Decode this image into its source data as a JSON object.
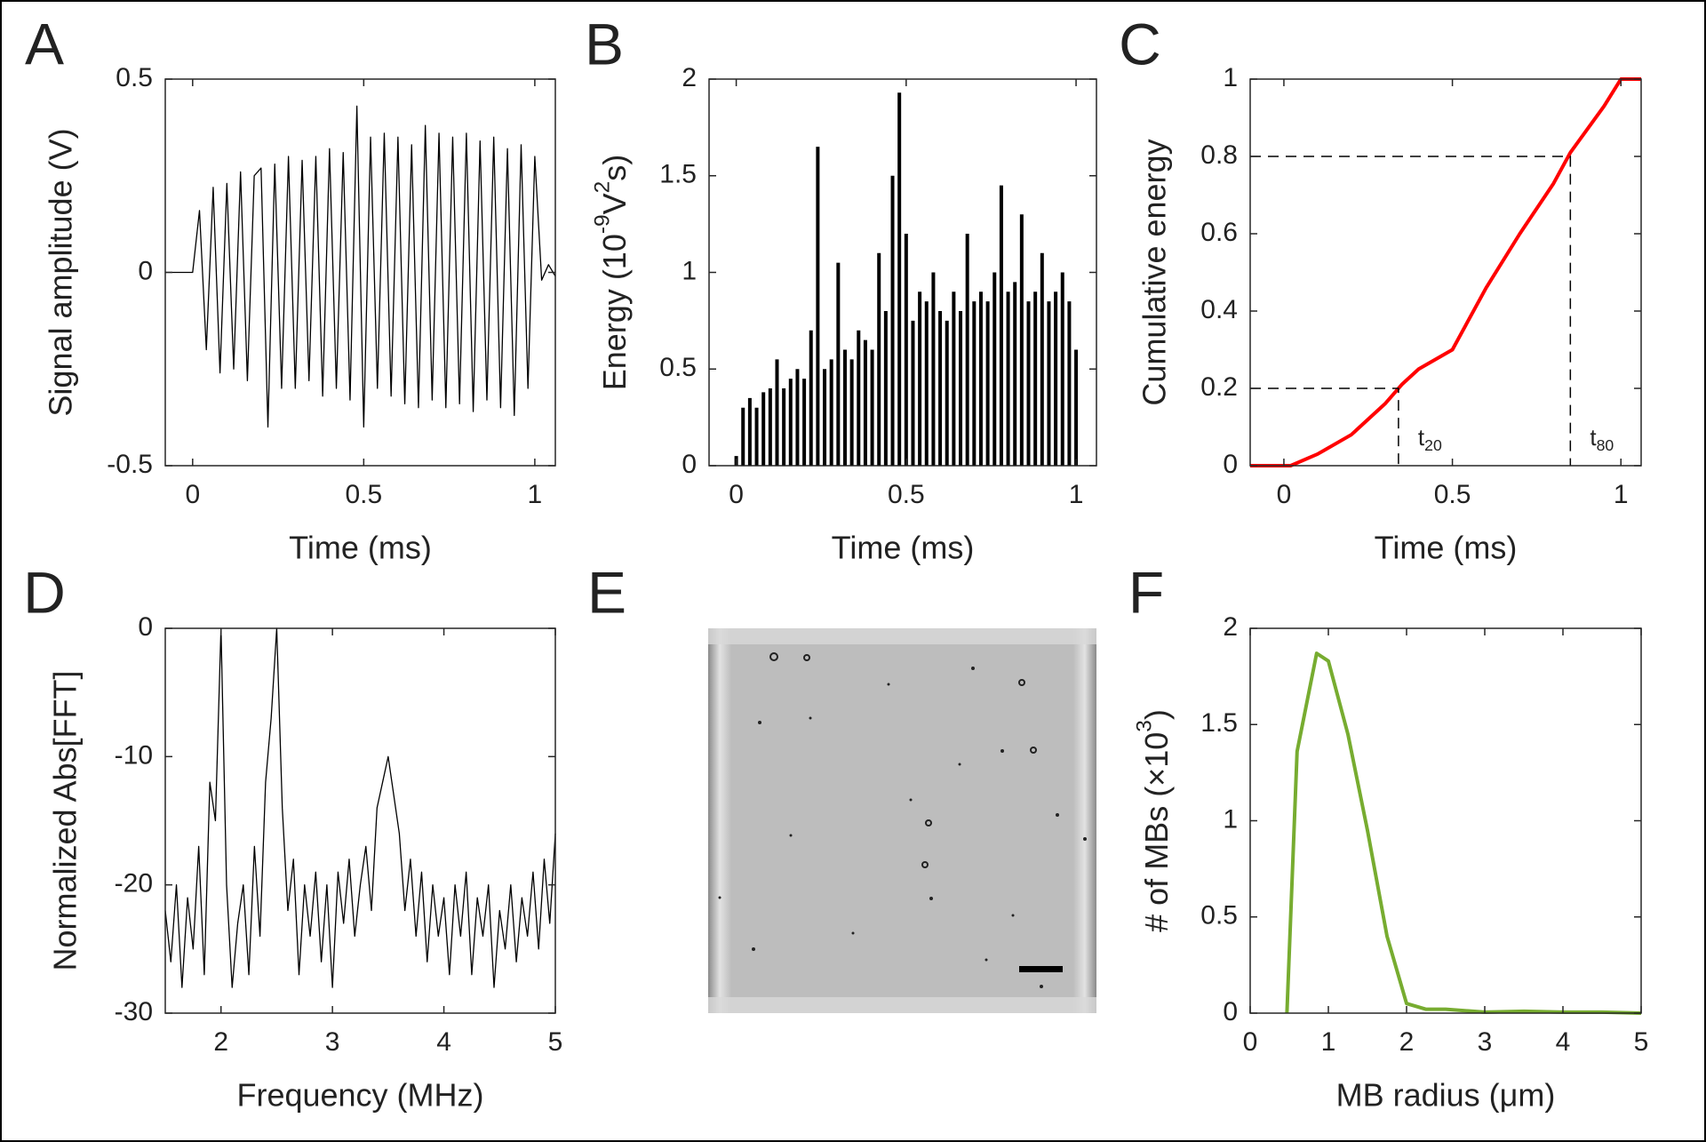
{
  "chart_data": [
    {
      "panel": "A",
      "type": "line",
      "color": "#000000",
      "xlabel": "Time (ms)",
      "ylabel": "Signal amplitude (V)",
      "xlim": [
        -0.08,
        1.06
      ],
      "ylim": [
        -0.5,
        0.5
      ],
      "xticks": [
        0,
        0.5,
        1
      ],
      "yticks": [
        -0.5,
        0,
        0.5
      ],
      "x": [
        -0.08,
        -0.06,
        -0.04,
        -0.02,
        0,
        0.02,
        0.04,
        0.06,
        0.08,
        0.1,
        0.12,
        0.14,
        0.16,
        0.18,
        0.2,
        0.22,
        0.24,
        0.26,
        0.28,
        0.3,
        0.32,
        0.34,
        0.36,
        0.38,
        0.4,
        0.42,
        0.44,
        0.46,
        0.48,
        0.5,
        0.52,
        0.54,
        0.56,
        0.58,
        0.6,
        0.62,
        0.64,
        0.66,
        0.68,
        0.7,
        0.72,
        0.74,
        0.76,
        0.78,
        0.8,
        0.82,
        0.84,
        0.86,
        0.88,
        0.9,
        0.92,
        0.94,
        0.96,
        0.98,
        1,
        1.02,
        1.04,
        1.06
      ],
      "values": [
        0,
        0,
        0,
        0,
        0,
        0.16,
        -0.2,
        0.22,
        -0.26,
        0.23,
        -0.25,
        0.26,
        -0.28,
        0.25,
        0.27,
        -0.4,
        0.28,
        -0.3,
        0.3,
        -0.3,
        0.29,
        -0.28,
        0.3,
        -0.32,
        0.32,
        -0.3,
        0.31,
        -0.33,
        0.43,
        -0.4,
        0.35,
        -0.3,
        0.36,
        -0.32,
        0.35,
        -0.34,
        0.33,
        -0.35,
        0.38,
        -0.33,
        0.36,
        -0.35,
        0.35,
        -0.34,
        0.36,
        -0.36,
        0.34,
        -0.33,
        0.35,
        -0.35,
        0.32,
        -0.37,
        0.33,
        -0.3,
        0.3,
        -0.02,
        0.02,
        -0.01
      ]
    },
    {
      "panel": "B",
      "type": "stem",
      "color": "#000000",
      "xlabel": "Time (ms)",
      "ylabel": [
        {
          "text": "Energy (10"
        },
        {
          "text": "-9",
          "sup": true
        },
        {
          "text": "V"
        },
        {
          "text": "2",
          "sup": true
        },
        {
          "text": "s)"
        }
      ],
      "xlim": [
        -0.08,
        1.06
      ],
      "ylim": [
        0,
        2
      ],
      "xticks": [
        0,
        0.5,
        1
      ],
      "yticks": [
        0,
        0.5,
        1,
        1.5,
        2
      ],
      "x": [
        0,
        0.02,
        0.04,
        0.06,
        0.08,
        0.1,
        0.12,
        0.14,
        0.16,
        0.18,
        0.2,
        0.22,
        0.24,
        0.26,
        0.28,
        0.3,
        0.32,
        0.34,
        0.36,
        0.38,
        0.4,
        0.42,
        0.44,
        0.46,
        0.48,
        0.5,
        0.52,
        0.54,
        0.56,
        0.58,
        0.6,
        0.62,
        0.64,
        0.66,
        0.68,
        0.7,
        0.72,
        0.74,
        0.76,
        0.78,
        0.8,
        0.82,
        0.84,
        0.86,
        0.88,
        0.9,
        0.92,
        0.94,
        0.96,
        0.98,
        1
      ],
      "values": [
        0.05,
        0.3,
        0.35,
        0.3,
        0.38,
        0.4,
        0.55,
        0.4,
        0.45,
        0.5,
        0.45,
        0.7,
        1.65,
        0.5,
        0.55,
        1.05,
        0.6,
        0.55,
        0.7,
        0.65,
        0.6,
        1.1,
        0.8,
        1.5,
        1.93,
        1.2,
        0.75,
        0.9,
        0.85,
        1,
        0.8,
        0.75,
        0.9,
        0.8,
        1.2,
        0.85,
        0.9,
        0.85,
        1,
        1.45,
        0.9,
        0.95,
        1.3,
        0.85,
        0.9,
        1.1,
        0.85,
        0.9,
        1,
        0.85,
        0.6
      ]
    },
    {
      "panel": "C",
      "type": "line",
      "color": "#ff0000",
      "xlabel": "Time (ms)",
      "ylabel": "Cumulative energy",
      "xlim": [
        -0.1,
        1.06
      ],
      "ylim": [
        0,
        1
      ],
      "xticks": [
        0,
        0.5,
        1
      ],
      "yticks": [
        0,
        0.2,
        0.4,
        0.6,
        0.8,
        1
      ],
      "x": [
        -0.1,
        0,
        0.02,
        0.1,
        0.2,
        0.3,
        0.35,
        0.4,
        0.5,
        0.55,
        0.6,
        0.7,
        0.8,
        0.85,
        0.9,
        0.95,
        1,
        1.06
      ],
      "values": [
        0,
        0,
        0,
        0.03,
        0.08,
        0.16,
        0.21,
        0.25,
        0.3,
        0.38,
        0.46,
        0.6,
        0.73,
        0.81,
        0.87,
        0.93,
        1,
        1
      ],
      "ref_lines": [
        {
          "x": 0.34,
          "y": 0.2,
          "label": [
            {
              "text": "t"
            },
            {
              "text": "20",
              "sub": true
            }
          ]
        },
        {
          "x": 0.85,
          "y": 0.8,
          "label": [
            {
              "text": "t"
            },
            {
              "text": "80",
              "sub": true
            }
          ]
        }
      ]
    },
    {
      "panel": "D",
      "type": "line",
      "color": "#000000",
      "xlabel": "Frequency (MHz)",
      "ylabel": "Normalized Abs[FFT]",
      "xlim": [
        1.5,
        5
      ],
      "ylim": [
        -30,
        0
      ],
      "xticks": [
        2,
        3,
        4,
        5
      ],
      "yticks": [
        -30,
        -20,
        -10,
        0
      ],
      "x": [
        1.5,
        1.55,
        1.6,
        1.65,
        1.7,
        1.75,
        1.8,
        1.85,
        1.9,
        1.95,
        2,
        2.05,
        2.1,
        2.15,
        2.2,
        2.25,
        2.3,
        2.35,
        2.4,
        2.45,
        2.5,
        2.55,
        2.6,
        2.65,
        2.7,
        2.75,
        2.8,
        2.85,
        2.9,
        2.95,
        3,
        3.05,
        3.1,
        3.15,
        3.2,
        3.25,
        3.3,
        3.35,
        3.4,
        3.45,
        3.5,
        3.55,
        3.6,
        3.65,
        3.7,
        3.75,
        3.8,
        3.85,
        3.9,
        3.95,
        4,
        4.05,
        4.1,
        4.15,
        4.2,
        4.25,
        4.3,
        4.35,
        4.4,
        4.45,
        4.5,
        4.55,
        4.6,
        4.65,
        4.7,
        4.75,
        4.8,
        4.85,
        4.9,
        4.95,
        5
      ],
      "values": [
        -22,
        -26,
        -20,
        -28,
        -21,
        -25,
        -17,
        -27,
        -12,
        -15,
        0,
        -20,
        -28,
        -23,
        -20,
        -27,
        -17,
        -24,
        -12,
        -7,
        0,
        -14,
        -22,
        -18,
        -27,
        -20,
        -24,
        -19,
        -26,
        -20,
        -28,
        -19,
        -23,
        -18,
        -24,
        -20,
        -17,
        -22,
        -14,
        -12,
        -10,
        -13,
        -16,
        -22,
        -18,
        -24,
        -19,
        -26,
        -20,
        -24,
        -21,
        -27,
        -20,
        -24,
        -19,
        -27,
        -21,
        -24,
        -20,
        -28,
        -22,
        -25,
        -20,
        -26,
        -21,
        -24,
        -19,
        -25,
        -18,
        -23,
        -16
      ]
    },
    {
      "panel": "E",
      "type": "image"
    },
    {
      "panel": "F",
      "type": "line",
      "color": "#77ac30",
      "xlabel": "MB radius (μm)",
      "ylabel": [
        {
          "text": "# of MBs (×10"
        },
        {
          "text": "3",
          "sup": true
        },
        {
          "text": ")"
        }
      ],
      "xlim": [
        0,
        5
      ],
      "ylim": [
        0,
        2
      ],
      "xticks": [
        0,
        1,
        2,
        3,
        4,
        5
      ],
      "yticks": [
        0,
        0.5,
        1,
        1.5,
        2
      ],
      "x": [
        0.47,
        0.6,
        0.85,
        1,
        1.25,
        1.5,
        1.75,
        2,
        2.25,
        2.5,
        3,
        3.5,
        4,
        4.5,
        5
      ],
      "values": [
        0,
        1.36,
        1.87,
        1.83,
        1.45,
        0.95,
        0.4,
        0.05,
        0.02,
        0.02,
        0.005,
        0.01,
        0.005,
        0.005,
        0
      ]
    }
  ]
}
